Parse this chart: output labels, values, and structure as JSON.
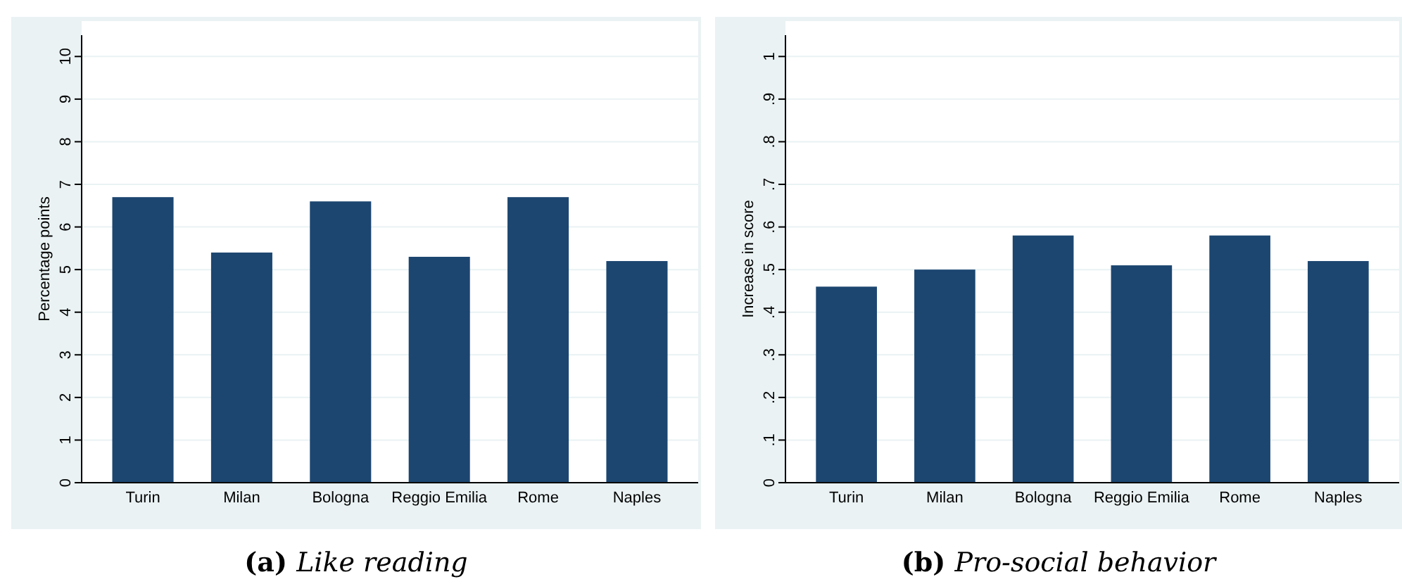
{
  "chart_data": [
    {
      "type": "bar",
      "title": "(a) Like reading",
      "ylabel": "Percentage points",
      "categories": [
        "Turin",
        "Milan",
        "Bologna",
        "Reggio Emilia",
        "Rome",
        "Naples"
      ],
      "values": [
        6.7,
        5.4,
        6.6,
        5.3,
        6.7,
        5.2
      ],
      "color": "#1c4670",
      "ylim": [
        0,
        10.5
      ],
      "yticks": [
        0,
        1,
        2,
        3,
        4,
        5,
        6,
        7,
        8,
        9,
        10
      ],
      "grid": "y"
    },
    {
      "type": "bar",
      "title": "(b) Pro-social behavior",
      "ylabel": "Increase in score",
      "categories": [
        "Turin",
        "Milan",
        "Bologna",
        "Reggio Emilia",
        "Rome",
        "Naples"
      ],
      "values": [
        0.46,
        0.5,
        0.58,
        0.51,
        0.58,
        0.52
      ],
      "color": "#1c4670",
      "ylim": [
        0,
        1.05
      ],
      "yticks": [
        0,
        {
          "value": 0.1,
          "label": ".1"
        },
        {
          "value": 0.2,
          "label": ".2"
        },
        {
          "value": 0.3,
          "label": ".3"
        },
        {
          "value": 0.4,
          "label": ".4"
        },
        {
          "value": 0.5,
          "label": ".5"
        },
        {
          "value": 0.6,
          "label": ".6"
        },
        {
          "value": 0.7,
          "label": ".7"
        },
        {
          "value": 0.8,
          "label": ".8"
        },
        {
          "value": 0.9,
          "label": ".9"
        },
        1
      ],
      "grid": "y"
    }
  ]
}
